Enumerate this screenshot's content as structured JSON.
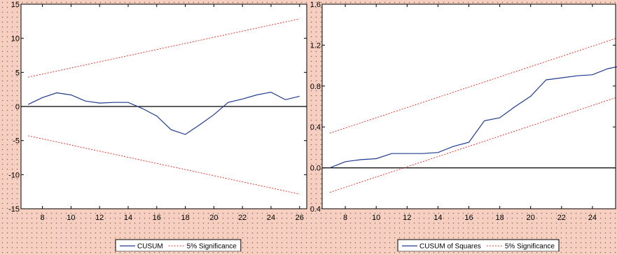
{
  "chart_data": [
    {
      "type": "line",
      "x": [
        7,
        8,
        9,
        10,
        11,
        12,
        13,
        14,
        15,
        16,
        17,
        18,
        19,
        20,
        21,
        22,
        23,
        24,
        25,
        26
      ],
      "xticks": [
        "8",
        "10",
        "12",
        "14",
        "16",
        "18",
        "20",
        "22",
        "24",
        "26"
      ],
      "xlim": [
        6.5,
        26.5
      ],
      "ylim": [
        -15,
        15
      ],
      "yticks": [
        "-15",
        "-10",
        "-5",
        "0",
        "5",
        "10",
        "15"
      ],
      "series": [
        {
          "name": "CUSUM",
          "color": "#1f3b8f",
          "style": "solid",
          "values": [
            0.3,
            1.3,
            2.0,
            1.7,
            0.8,
            0.5,
            0.6,
            0.6,
            -0.3,
            -1.4,
            -3.4,
            -4.1,
            -2.7,
            -1.2,
            0.6,
            1.1,
            1.7,
            2.1,
            1.0,
            1.5
          ]
        },
        {
          "name": "5% Significance",
          "color": "#e03a2f",
          "style": "dashed",
          "values": [
            4.3,
            4.75,
            5.2,
            5.65,
            6.1,
            6.55,
            7.0,
            7.45,
            7.9,
            8.35,
            8.8,
            9.25,
            9.7,
            10.15,
            10.6,
            11.05,
            11.5,
            11.95,
            12.4,
            12.85
          ]
        },
        {
          "name": "",
          "color": "#e03a2f",
          "style": "dashed",
          "values": [
            -4.3,
            -4.75,
            -5.2,
            -5.65,
            -6.1,
            -6.55,
            -7.0,
            -7.45,
            -7.9,
            -8.35,
            -8.8,
            -9.25,
            -9.7,
            -10.15,
            -10.6,
            -11.05,
            -11.5,
            -11.95,
            -12.4,
            -12.85
          ]
        }
      ],
      "reference_line": 0,
      "legend": [
        "CUSUM",
        "5% Significance"
      ],
      "legend_placement": "bottom-center",
      "grid": false
    },
    {
      "type": "line",
      "x": [
        7,
        8,
        9,
        10,
        11,
        12,
        13,
        14,
        15,
        16,
        17,
        18,
        19,
        20,
        21,
        22,
        23,
        24,
        25,
        26
      ],
      "xticks": [
        "8",
        "10",
        "12",
        "14",
        "16",
        "18",
        "20",
        "22",
        "24"
      ],
      "xlim": [
        6.5,
        25.5
      ],
      "ylim": [
        -0.4,
        1.6
      ],
      "yticks": [
        "-0.4",
        "0.0",
        "0.4",
        "0.8",
        "1.2",
        "1.6"
      ],
      "series": [
        {
          "name": "CUSUM of Squares",
          "color": "#1f3b8f",
          "style": "solid",
          "values": [
            0.0,
            0.06,
            0.08,
            0.09,
            0.14,
            0.14,
            0.14,
            0.15,
            0.21,
            0.25,
            0.46,
            0.49,
            0.6,
            0.7,
            0.86,
            0.88,
            0.9,
            0.91,
            0.97,
            1.0
          ]
        },
        {
          "name": "5% Significance",
          "color": "#e03a2f",
          "style": "dashed",
          "values": [
            0.34,
            0.39,
            0.44,
            0.49,
            0.54,
            0.59,
            0.64,
            0.69,
            0.74,
            0.79,
            0.84,
            0.89,
            0.94,
            0.99,
            1.04,
            1.09,
            1.14,
            1.19,
            1.24,
            1.29
          ]
        },
        {
          "name": "",
          "color": "#e03a2f",
          "style": "dashed",
          "values": [
            -0.24,
            -0.19,
            -0.14,
            -0.09,
            -0.04,
            0.01,
            0.06,
            0.11,
            0.16,
            0.21,
            0.26,
            0.31,
            0.36,
            0.41,
            0.46,
            0.51,
            0.56,
            0.61,
            0.66,
            0.71
          ]
        }
      ],
      "reference_line": 0,
      "legend": [
        "CUSUM of Squares",
        "5% Significance"
      ],
      "legend_placement": "bottom-center",
      "grid": false
    }
  ]
}
